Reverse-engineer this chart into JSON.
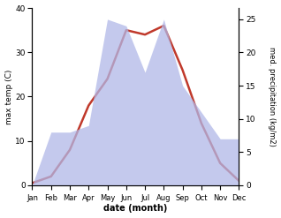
{
  "months": [
    "Jan",
    "Feb",
    "Mar",
    "Apr",
    "May",
    "Jun",
    "Jul",
    "Aug",
    "Sep",
    "Oct",
    "Nov",
    "Dec"
  ],
  "temperature": [
    0.5,
    2,
    8,
    18,
    24,
    35,
    34,
    36,
    26,
    14,
    5,
    1
  ],
  "precipitation": [
    0,
    8,
    8,
    9,
    25,
    24,
    17,
    25,
    15,
    11,
    7,
    7
  ],
  "temp_ylim": [
    0,
    40
  ],
  "precip_ylim": [
    0,
    26.7
  ],
  "temp_yticks": [
    0,
    10,
    20,
    30,
    40
  ],
  "precip_yticks": [
    0,
    5,
    10,
    15,
    20,
    25
  ],
  "xlabel": "date (month)",
  "ylabel_left": "max temp (C)",
  "ylabel_right": "med. precipitation (kg/m2)",
  "fill_color": "#b0b8e8",
  "fill_alpha": 0.75,
  "line_color": "#c0392b",
  "line_width": 1.8,
  "bg_color": "#ffffff"
}
